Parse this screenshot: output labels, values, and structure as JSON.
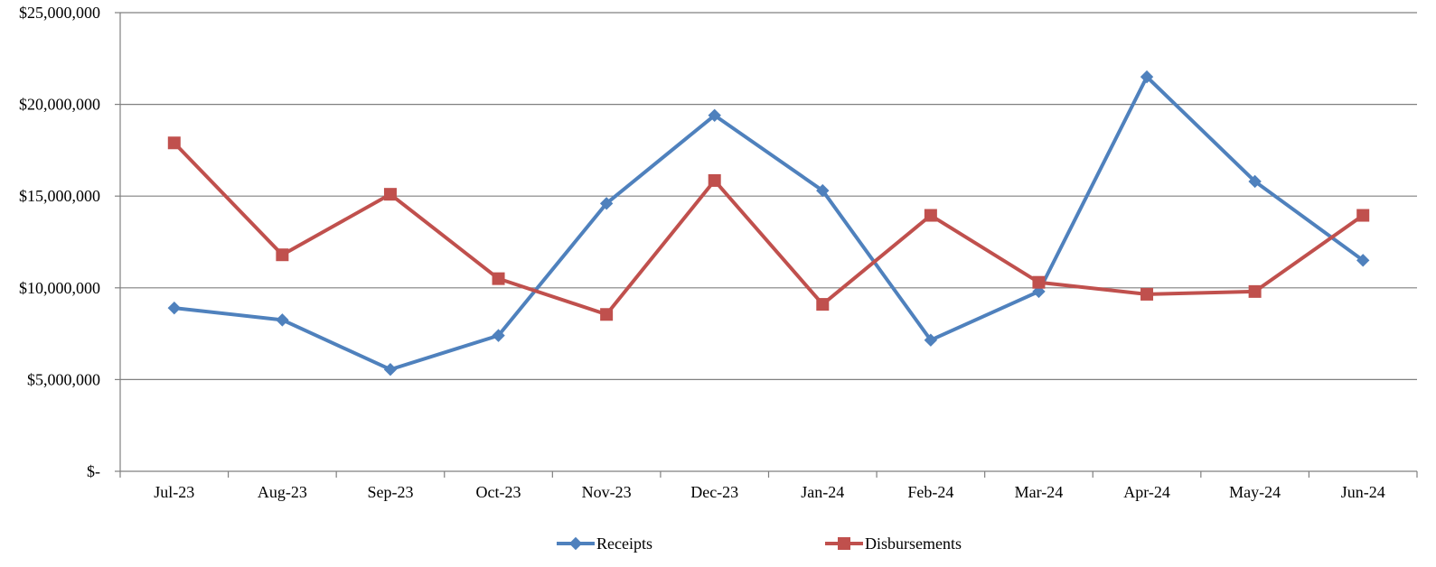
{
  "chart_data": {
    "type": "line",
    "categories": [
      "Jul-23",
      "Aug-23",
      "Sep-23",
      "Oct-23",
      "Nov-23",
      "Dec-23",
      "Jan-24",
      "Feb-24",
      "Mar-24",
      "Apr-24",
      "May-24",
      "Jun-24"
    ],
    "series": [
      {
        "name": "Receipts",
        "color": "#4F81BD",
        "marker": "diamond",
        "values": [
          8900000,
          8250000,
          5550000,
          7400000,
          14600000,
          19400000,
          15300000,
          7150000,
          9800000,
          21500000,
          15800000,
          11500000
        ]
      },
      {
        "name": "Disbursements",
        "color": "#C0504D",
        "marker": "square",
        "values": [
          17900000,
          11800000,
          15100000,
          10500000,
          8550000,
          15850000,
          9100000,
          13950000,
          10300000,
          9650000,
          9800000,
          13950000
        ]
      }
    ],
    "ylim": [
      0,
      25000000
    ],
    "y_ticks": [
      {
        "value": 0,
        "label": "$-"
      },
      {
        "value": 5000000,
        "label": "$5,000,000"
      },
      {
        "value": 10000000,
        "label": "$10,000,000"
      },
      {
        "value": 15000000,
        "label": "$15,000,000"
      },
      {
        "value": 20000000,
        "label": "$20,000,000"
      },
      {
        "value": 25000000,
        "label": "$25,000,000"
      }
    ],
    "grid": true,
    "gridline_color": "#808080",
    "legend_position": "bottom"
  }
}
